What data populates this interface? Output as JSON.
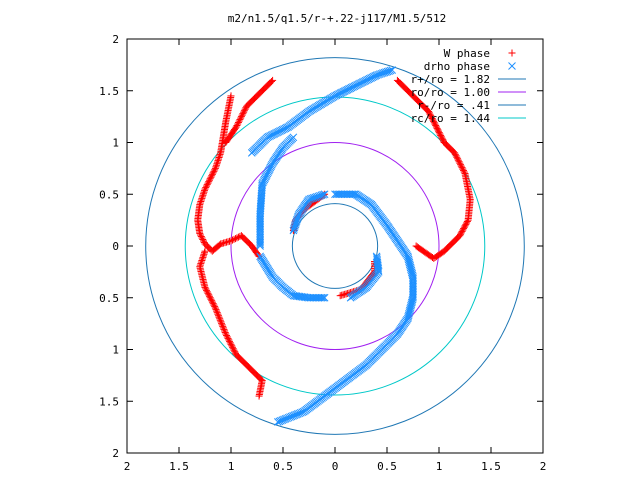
{
  "chart_data": {
    "type": "scatter",
    "title": "m2/n1.5/q1.5/r-+.22-j117/M1.5/512",
    "xlabel": "",
    "ylabel": "",
    "xlim": [
      -2,
      2
    ],
    "ylim": [
      -2,
      2
    ],
    "x_ticks": [
      -2,
      -1.5,
      -1,
      -0.5,
      0,
      0.5,
      1,
      1.5,
      2
    ],
    "y_ticks": [
      -2,
      -1.5,
      -1,
      -0.5,
      0,
      0.5,
      1,
      1.5,
      2
    ],
    "x_tick_labels": [
      "2",
      "1.5",
      "1",
      "0.5",
      "0",
      "0.5",
      "1",
      "1.5",
      "2"
    ],
    "y_tick_labels": [
      "2",
      "1.5",
      "1",
      "0.5",
      "0",
      "0.5",
      "1",
      "1.5",
      "2"
    ],
    "grid": false,
    "legend_position": "top-right",
    "series": [
      {
        "name": "W phase",
        "marker": "plus",
        "color": "#ff0000",
        "arms": [
          [
            [
              0.6,
              1.6
            ],
            [
              0.9,
              1.3
            ],
            [
              1.05,
              1.0
            ],
            [
              1.15,
              0.9
            ],
            [
              1.25,
              0.7
            ],
            [
              1.3,
              0.45
            ],
            [
              1.28,
              0.25
            ],
            [
              1.2,
              0.1
            ],
            [
              1.05,
              -0.05
            ],
            [
              0.95,
              -0.12
            ],
            [
              0.85,
              -0.05
            ],
            [
              0.78,
              0.0
            ]
          ],
          [
            [
              -0.6,
              1.6
            ],
            [
              -0.85,
              1.35
            ],
            [
              -0.95,
              1.15
            ],
            [
              -1.05,
              1.0
            ]
          ],
          [
            [
              -1.0,
              1.45
            ],
            [
              -1.05,
              1.2
            ],
            [
              -1.1,
              0.9
            ],
            [
              -1.15,
              0.75
            ],
            [
              -1.2,
              0.65
            ],
            [
              -1.25,
              0.55
            ],
            [
              -1.3,
              0.4
            ],
            [
              -1.32,
              0.25
            ],
            [
              -1.3,
              0.12
            ],
            [
              -1.25,
              0.02
            ],
            [
              -1.18,
              -0.05
            ],
            [
              -1.1,
              0.02
            ],
            [
              -1.0,
              0.05
            ],
            [
              -0.9,
              0.1
            ],
            [
              -0.8,
              0.0
            ],
            [
              -0.73,
              -0.1
            ]
          ],
          [
            [
              -0.73,
              -1.45
            ],
            [
              -0.7,
              -1.3
            ],
            [
              -0.8,
              -1.2
            ],
            [
              -0.95,
              -1.05
            ],
            [
              -1.05,
              -0.85
            ],
            [
              -1.15,
              -0.6
            ],
            [
              -1.25,
              -0.4
            ],
            [
              -1.3,
              -0.2
            ],
            [
              -1.25,
              -0.05
            ]
          ],
          [
            [
              0.05,
              -0.48
            ],
            [
              0.25,
              -0.42
            ],
            [
              0.38,
              -0.25
            ],
            [
              0.38,
              -0.15
            ]
          ],
          [
            [
              -0.1,
              0.5
            ],
            [
              -0.3,
              0.35
            ],
            [
              -0.38,
              0.25
            ],
            [
              -0.4,
              0.15
            ]
          ]
        ]
      },
      {
        "name": "drho phase",
        "marker": "cross",
        "color": "#1e90ff",
        "arms": [
          [
            [
              -0.8,
              0.9
            ],
            [
              -0.65,
              1.05
            ],
            [
              -0.45,
              1.15
            ],
            [
              -0.25,
              1.3
            ],
            [
              0.0,
              1.45
            ],
            [
              0.2,
              1.55
            ],
            [
              0.4,
              1.65
            ],
            [
              0.55,
              1.7
            ]
          ],
          [
            [
              -0.72,
              0.0
            ],
            [
              -0.72,
              0.3
            ],
            [
              -0.7,
              0.6
            ],
            [
              -0.6,
              0.8
            ],
            [
              -0.5,
              0.95
            ],
            [
              -0.4,
              1.05
            ]
          ],
          [
            [
              -0.72,
              -0.1
            ],
            [
              -0.6,
              -0.3
            ],
            [
              -0.5,
              -0.4
            ],
            [
              -0.4,
              -0.48
            ],
            [
              -0.25,
              -0.5
            ],
            [
              -0.1,
              -0.5
            ]
          ],
          [
            [
              0.0,
              0.5
            ],
            [
              0.2,
              0.5
            ],
            [
              0.35,
              0.4
            ],
            [
              0.5,
              0.2
            ],
            [
              0.6,
              0.05
            ],
            [
              0.7,
              -0.1
            ],
            [
              0.75,
              -0.3
            ],
            [
              0.75,
              -0.5
            ],
            [
              0.7,
              -0.7
            ],
            [
              0.6,
              -0.85
            ],
            [
              0.45,
              -1.0
            ],
            [
              0.3,
              -1.15
            ],
            [
              0.1,
              -1.3
            ],
            [
              -0.1,
              -1.45
            ],
            [
              -0.3,
              -1.6
            ],
            [
              -0.55,
              -1.7
            ]
          ],
          [
            [
              -0.4,
              0.15
            ],
            [
              -0.35,
              0.3
            ],
            [
              -0.25,
              0.45
            ],
            [
              -0.1,
              0.5
            ]
          ],
          [
            [
              0.4,
              -0.1
            ],
            [
              0.42,
              -0.25
            ],
            [
              0.3,
              -0.4
            ],
            [
              0.15,
              -0.5
            ]
          ]
        ]
      }
    ],
    "circles": [
      {
        "name": "r+/ro = 1.82",
        "radius": 1.82,
        "color": "#1f77b4"
      },
      {
        "name": "ro/ro = 1.00",
        "radius": 1.0,
        "color": "#a020f0"
      },
      {
        "name": "r-/ro = .41",
        "radius": 0.41,
        "color": "#1f77b4"
      },
      {
        "name": "rc/ro = 1.44",
        "radius": 1.44,
        "color": "#00c8c8"
      }
    ]
  }
}
